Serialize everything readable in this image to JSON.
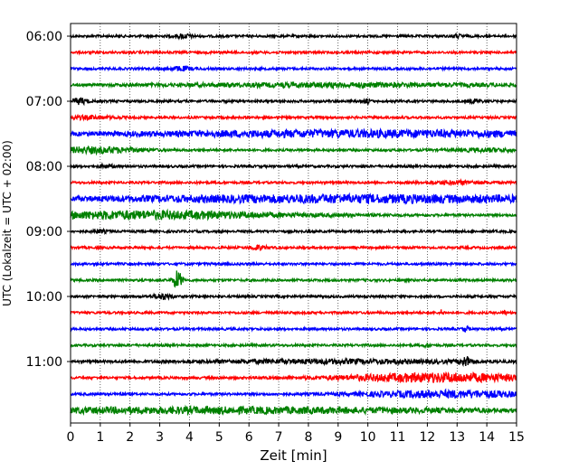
{
  "chart_data": {
    "type": "line",
    "title": "",
    "xlabel": "Zeit  [min]",
    "ylabel": "UTC (Lokalzeit = UTC + 02:00)",
    "xlim": [
      0,
      15
    ],
    "x_ticks": [
      "0",
      "1",
      "2",
      "3",
      "4",
      "5",
      "6",
      "7",
      "8",
      "9",
      "10",
      "11",
      "12",
      "13",
      "14",
      "15"
    ],
    "y_ticks": [
      "06:00",
      "07:00",
      "08:00",
      "09:00",
      "10:00",
      "11:00"
    ],
    "grid": "vertical dotted",
    "series_colors": [
      "#000000",
      "#ff0000",
      "#0000ff",
      "#008000"
    ],
    "traces": [
      {
        "start": "06:00",
        "color": "#000000",
        "events": [
          [
            3.8,
            2.0,
            0.3
          ],
          [
            13.0,
            1.5,
            0.2
          ]
        ]
      },
      {
        "start": "06:15",
        "color": "#ff0000",
        "events": []
      },
      {
        "start": "06:30",
        "color": "#0000ff",
        "events": [
          [
            3.7,
            2.0,
            0.4
          ]
        ]
      },
      {
        "start": "06:45",
        "color": "#008000",
        "events": [
          [
            9.0,
            1.8,
            6.0
          ]
        ]
      },
      {
        "start": "07:00",
        "color": "#000000",
        "events": [
          [
            0.3,
            3.0,
            0.3
          ],
          [
            10.0,
            2.5,
            0.1
          ],
          [
            13.6,
            2.0,
            0.2
          ]
        ]
      },
      {
        "start": "07:15",
        "color": "#ff0000",
        "events": [
          [
            0.5,
            1.5,
            1.0
          ]
        ]
      },
      {
        "start": "07:30",
        "color": "#0000ff",
        "events": [
          [
            10.0,
            3.5,
            9.0
          ]
        ]
      },
      {
        "start": "07:45",
        "color": "#008000",
        "events": [
          [
            0.8,
            3.0,
            1.5
          ],
          [
            14.0,
            1.5,
            1.0
          ]
        ]
      },
      {
        "start": "08:00",
        "color": "#000000",
        "events": [
          [
            1.2,
            1.5,
            0.3
          ]
        ]
      },
      {
        "start": "08:15",
        "color": "#ff0000",
        "events": [
          [
            13.0,
            1.5,
            1.0
          ]
        ]
      },
      {
        "start": "08:30",
        "color": "#0000ff",
        "events": [
          [
            9.5,
            4.0,
            10.0
          ]
        ]
      },
      {
        "start": "08:45",
        "color": "#008000",
        "events": [
          [
            2.5,
            4.0,
            5.0
          ]
        ]
      },
      {
        "start": "09:00",
        "color": "#000000",
        "events": [
          [
            1.0,
            1.2,
            0.3
          ]
        ]
      },
      {
        "start": "09:15",
        "color": "#ff0000",
        "events": [
          [
            6.3,
            2.0,
            0.3
          ]
        ]
      },
      {
        "start": "09:30",
        "color": "#0000ff",
        "events": []
      },
      {
        "start": "09:45",
        "color": "#008000",
        "events": [
          [
            3.6,
            10.0,
            0.15
          ]
        ]
      },
      {
        "start": "10:00",
        "color": "#000000",
        "events": [
          [
            3.1,
            3.0,
            0.3
          ]
        ]
      },
      {
        "start": "10:15",
        "color": "#ff0000",
        "events": [
          [
            12.5,
            4.0,
            0.05
          ],
          [
            14.6,
            3.0,
            0.05
          ]
        ]
      },
      {
        "start": "10:30",
        "color": "#0000ff",
        "events": [
          [
            13.3,
            3.0,
            0.1
          ]
        ]
      },
      {
        "start": "10:45",
        "color": "#008000",
        "events": [
          [
            12.0,
            2.0,
            0.1
          ]
        ]
      },
      {
        "start": "11:00",
        "color": "#000000",
        "events": [
          [
            13.3,
            4.5,
            0.2
          ],
          [
            9.0,
            1.8,
            5.0
          ]
        ]
      },
      {
        "start": "11:15",
        "color": "#ff0000",
        "events": [
          [
            12.5,
            4.5,
            3.5
          ]
        ]
      },
      {
        "start": "11:30",
        "color": "#0000ff",
        "events": [
          [
            12.8,
            3.5,
            3.0
          ],
          [
            1.7,
            1.5,
            0.1
          ]
        ]
      },
      {
        "start": "11:45",
        "color": "#008000",
        "events": [
          [
            5.0,
            3.0,
            10.0
          ]
        ]
      }
    ]
  }
}
